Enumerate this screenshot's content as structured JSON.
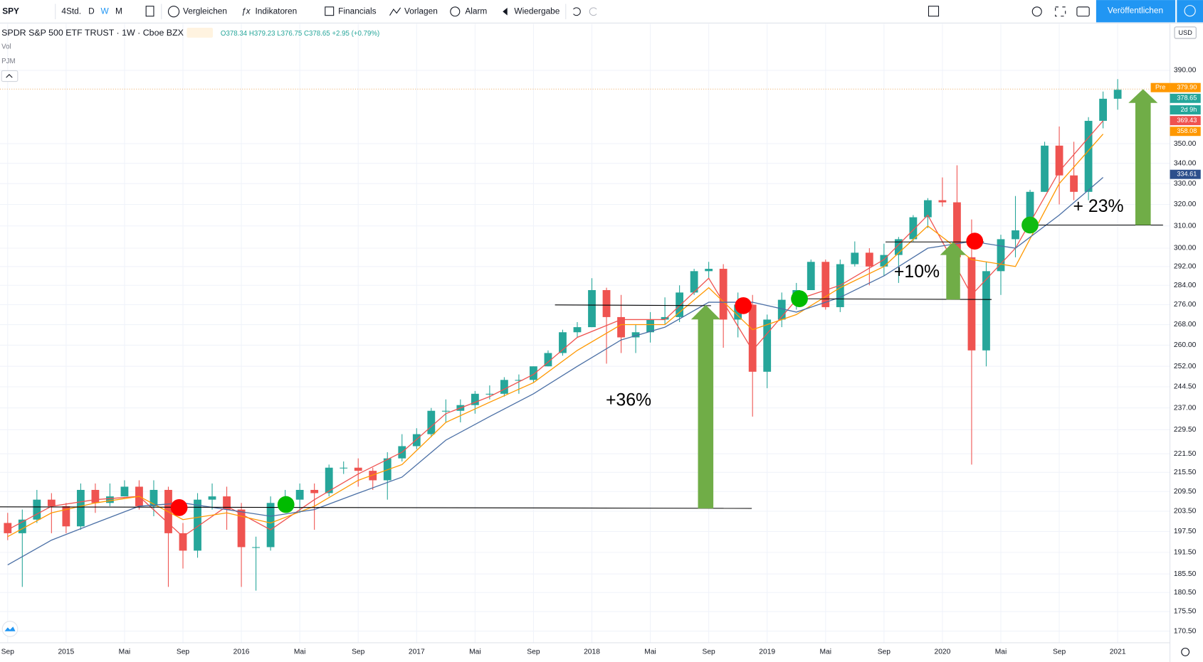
{
  "toolbar": {
    "symbol": "SPY",
    "interval": "4Std.",
    "intervals": [
      "D",
      "W",
      "M"
    ],
    "buttons": [
      "Vergleichen",
      "Indikatoren",
      "Financials",
      "Vorlagen",
      "Alarm",
      "Wiedergabe"
    ],
    "publish": "Veröffentlichen"
  },
  "legend": {
    "title": "SPDR S&P 500 ETF TRUST · 1W · Cboe BZX",
    "ohlc": "O378.34 H379.23 L376.75 C378.65 +2.95 (+0.79%)",
    "indicators": [
      "Vol",
      "PJM"
    ]
  },
  "currency": "USD",
  "chart_data": {
    "type": "candlestick",
    "log_scale": true,
    "grid": true,
    "up_color": "#26a69a",
    "down_color": "#ef5350",
    "x": [
      "2014-09",
      "2014-10",
      "2014-11",
      "2014-12",
      "2015-01",
      "2015-02",
      "2015-03",
      "2015-04",
      "2015-05",
      "2015-06",
      "2015-07",
      "2015-08",
      "2015-09",
      "2015-10",
      "2015-11",
      "2015-12",
      "2016-01",
      "2016-02",
      "2016-03",
      "2016-04",
      "2016-05",
      "2016-06",
      "2016-07",
      "2016-08",
      "2016-09",
      "2016-10",
      "2016-11",
      "2016-12",
      "2017-01",
      "2017-02",
      "2017-03",
      "2017-04",
      "2017-05",
      "2017-06",
      "2017-07",
      "2017-08",
      "2017-09",
      "2017-10",
      "2017-11",
      "2017-12",
      "2018-01",
      "2018-02",
      "2018-03",
      "2018-04",
      "2018-05",
      "2018-06",
      "2018-07",
      "2018-08",
      "2018-09",
      "2018-10",
      "2018-11",
      "2018-12",
      "2019-01",
      "2019-02",
      "2019-03",
      "2019-04",
      "2019-05",
      "2019-06",
      "2019-07",
      "2019-08",
      "2019-09",
      "2019-10",
      "2019-11",
      "2019-12",
      "2020-01",
      "2020-02",
      "2020-03",
      "2020-04",
      "2020-05",
      "2020-06",
      "2020-07",
      "2020-08",
      "2020-09",
      "2020-10",
      "2020-11",
      "2020-12",
      "2021-01"
    ],
    "open": [
      200,
      197,
      201,
      207,
      205,
      199,
      210,
      206,
      208,
      211,
      205,
      210,
      197,
      192,
      207,
      208,
      204,
      193,
      193,
      206,
      207,
      210,
      209,
      217,
      217,
      216,
      213,
      220,
      224,
      228,
      236,
      236,
      238,
      242,
      242,
      247,
      247,
      252,
      257,
      265,
      267,
      282,
      271,
      263,
      265,
      270,
      271,
      281,
      290,
      291,
      270,
      276,
      250,
      270,
      278,
      282,
      294,
      275,
      293,
      298,
      292,
      297,
      304,
      314,
      322,
      321,
      296,
      258,
      290,
      304,
      308,
      326,
      349,
      334,
      326,
      362,
      374
    ],
    "high": [
      203,
      204,
      210,
      209,
      206,
      212,
      212,
      212,
      213,
      213,
      213,
      211,
      200,
      209,
      212,
      211,
      206,
      196,
      208,
      210,
      212,
      212,
      218,
      219,
      220,
      217,
      222,
      228,
      230,
      237,
      240,
      240,
      243,
      245,
      248,
      249,
      252,
      258,
      266,
      269,
      287,
      283,
      280,
      268,
      273,
      279,
      284,
      291,
      294,
      293,
      281,
      280,
      272,
      281,
      285,
      295,
      295,
      295,
      303,
      300,
      302,
      305,
      315,
      323,
      333,
      339,
      313,
      294,
      306,
      324,
      327,
      351,
      359,
      351,
      364,
      378,
      385
    ],
    "low": [
      195,
      182,
      200,
      197,
      197,
      198,
      203,
      205,
      208,
      204,
      202,
      182,
      187,
      190,
      204,
      198,
      182,
      181,
      192,
      204,
      203,
      198,
      208,
      215,
      211,
      210,
      207,
      219,
      223,
      227,
      232,
      232,
      235,
      240,
      241,
      242,
      246,
      252,
      256,
      263,
      267,
      253,
      257,
      257,
      261,
      268,
      269,
      280,
      287,
      259,
      263,
      234,
      244,
      267,
      274,
      282,
      274,
      273,
      292,
      284,
      288,
      285,
      303,
      309,
      319,
      285,
      218,
      252,
      280,
      296,
      309,
      326,
      320,
      322,
      322,
      358,
      368
    ],
    "close": [
      197,
      201,
      207,
      205,
      199,
      210,
      206,
      208,
      211,
      205,
      210,
      197,
      192,
      207,
      208,
      204,
      193,
      193,
      206,
      207,
      210,
      209,
      217,
      217,
      216,
      213,
      220,
      224,
      228,
      236,
      236,
      238,
      242,
      242,
      247,
      247,
      252,
      257,
      265,
      267,
      282,
      271,
      263,
      265,
      270,
      271,
      281,
      290,
      291,
      270,
      276,
      250,
      270,
      278,
      282,
      294,
      275,
      293,
      298,
      292,
      297,
      304,
      314,
      322,
      321,
      296,
      258,
      290,
      304,
      308,
      326,
      349,
      334,
      326,
      362,
      374,
      379
    ],
    "lines": [
      {
        "color": "#ef5350",
        "x": [
          "2014-09",
          "2014-12",
          "2015-03",
          "2015-06",
          "2015-09",
          "2015-12",
          "2016-03",
          "2016-06",
          "2016-09",
          "2016-12",
          "2017-03",
          "2017-06",
          "2017-09",
          "2017-12",
          "2018-03",
          "2018-06",
          "2018-09",
          "2018-12",
          "2019-03",
          "2019-06",
          "2019-09",
          "2019-12",
          "2020-03",
          "2020-06",
          "2020-09",
          "2020-12"
        ],
        "values": [
          198,
          205,
          207,
          208,
          196,
          205,
          198,
          207,
          215,
          222,
          235,
          241,
          249,
          263,
          270,
          270,
          287,
          258,
          278,
          284,
          295,
          315,
          280,
          300,
          336,
          362
        ]
      },
      {
        "color": "#ff9800",
        "x": [
          "2014-09",
          "2014-12",
          "2015-03",
          "2015-06",
          "2015-09",
          "2015-12",
          "2016-03",
          "2016-06",
          "2016-09",
          "2016-12",
          "2017-03",
          "2017-06",
          "2017-09",
          "2017-12",
          "2018-03",
          "2018-06",
          "2018-09",
          "2018-12",
          "2019-03",
          "2019-06",
          "2019-09",
          "2019-12",
          "2020-03",
          "2020-06",
          "2020-09",
          "2020-12"
        ],
        "values": [
          196,
          203,
          206,
          208,
          201,
          203,
          200,
          205,
          213,
          218,
          232,
          239,
          246,
          258,
          268,
          268,
          283,
          266,
          272,
          283,
          292,
          310,
          295,
          292,
          330,
          355
        ]
      },
      {
        "color": "#4a6fa5",
        "x": [
          "2014-09",
          "2014-12",
          "2015-03",
          "2015-06",
          "2015-09",
          "2015-12",
          "2016-03",
          "2016-06",
          "2016-09",
          "2016-12",
          "2017-03",
          "2017-06",
          "2017-09",
          "2017-12",
          "2018-03",
          "2018-06",
          "2018-09",
          "2018-12",
          "2019-03",
          "2019-06",
          "2019-09",
          "2019-12",
          "2020-03",
          "2020-06",
          "2020-09",
          "2020-12"
        ],
        "values": [
          188,
          195,
          200,
          205,
          206,
          204,
          202,
          204,
          209,
          214,
          226,
          234,
          242,
          252,
          262,
          267,
          277,
          277,
          273,
          279,
          288,
          300,
          303,
          300,
          315,
          333
        ]
      }
    ],
    "ylim": [
      167.6,
      417.7
    ],
    "yticks": [
      {
        "value": 390,
        "label": "390.00"
      },
      {
        "value": 350,
        "label": "350.00"
      },
      {
        "value": 340,
        "label": "340.00"
      },
      {
        "value": 330,
        "label": "330.00"
      },
      {
        "value": 320,
        "label": "320.00"
      },
      {
        "value": 310,
        "label": "310.00"
      },
      {
        "value": 300,
        "label": "300.00"
      },
      {
        "value": 292,
        "label": "292.00"
      },
      {
        "value": 284,
        "label": "284.00"
      },
      {
        "value": 276,
        "label": "276.00"
      },
      {
        "value": 268,
        "label": "268.00"
      },
      {
        "value": 260,
        "label": "260.00"
      },
      {
        "value": 252,
        "label": "252.00"
      },
      {
        "value": 244.5,
        "label": "244.50"
      },
      {
        "value": 237,
        "label": "237.00"
      },
      {
        "value": 229.5,
        "label": "229.50"
      },
      {
        "value": 221.5,
        "label": "221.50"
      },
      {
        "value": 215.5,
        "label": "215.50"
      },
      {
        "value": 209.5,
        "label": "209.50"
      },
      {
        "value": 203.5,
        "label": "203.50"
      },
      {
        "value": 197.5,
        "label": "197.50"
      },
      {
        "value": 191.5,
        "label": "191.50"
      },
      {
        "value": 185.5,
        "label": "185.50"
      },
      {
        "value": 180.5,
        "label": "180.50"
      },
      {
        "value": 175.5,
        "label": "175.50"
      },
      {
        "value": 170.5,
        "label": "170.50"
      }
    ],
    "xticks": [
      {
        "value": "2014-09",
        "label": "Sep"
      },
      {
        "value": "2015-01",
        "label": "2015"
      },
      {
        "value": "2015-05",
        "label": "Mai"
      },
      {
        "value": "2015-09",
        "label": "Sep"
      },
      {
        "value": "2016-01",
        "label": "2016"
      },
      {
        "value": "2016-05",
        "label": "Mai"
      },
      {
        "value": "2016-09",
        "label": "Sep"
      },
      {
        "value": "2017-01",
        "label": "2017"
      },
      {
        "value": "2017-05",
        "label": "Mai"
      },
      {
        "value": "2017-09",
        "label": "Sep"
      },
      {
        "value": "2018-01",
        "label": "2018"
      },
      {
        "value": "2018-05",
        "label": "Mai"
      },
      {
        "value": "2018-09",
        "label": "Sep"
      },
      {
        "value": "2019-01",
        "label": "2019"
      },
      {
        "value": "2019-05",
        "label": "Mai"
      },
      {
        "value": "2019-09",
        "label": "Sep"
      },
      {
        "value": "2020-01",
        "label": "2020"
      },
      {
        "value": "2020-05",
        "label": "Mai"
      },
      {
        "value": "2020-09",
        "label": "Sep"
      },
      {
        "value": "2021-01",
        "label": "2021"
      }
    ],
    "price_tags": {
      "pre": "Pre",
      "tags": [
        {
          "label": "379.90",
          "color": "#ff9800"
        },
        {
          "label": "378.65",
          "color": "#26a69a"
        },
        {
          "label": "2d 9h",
          "color": "#26a69a"
        },
        {
          "label": "369.43",
          "color": "#ef5350"
        },
        {
          "label": "358.08",
          "color": "#ff9800"
        },
        {
          "label": "334.61",
          "color": "#2c4f8c"
        }
      ]
    },
    "annotations": [
      "+36%",
      "+10%",
      "+ 23%"
    ]
  }
}
